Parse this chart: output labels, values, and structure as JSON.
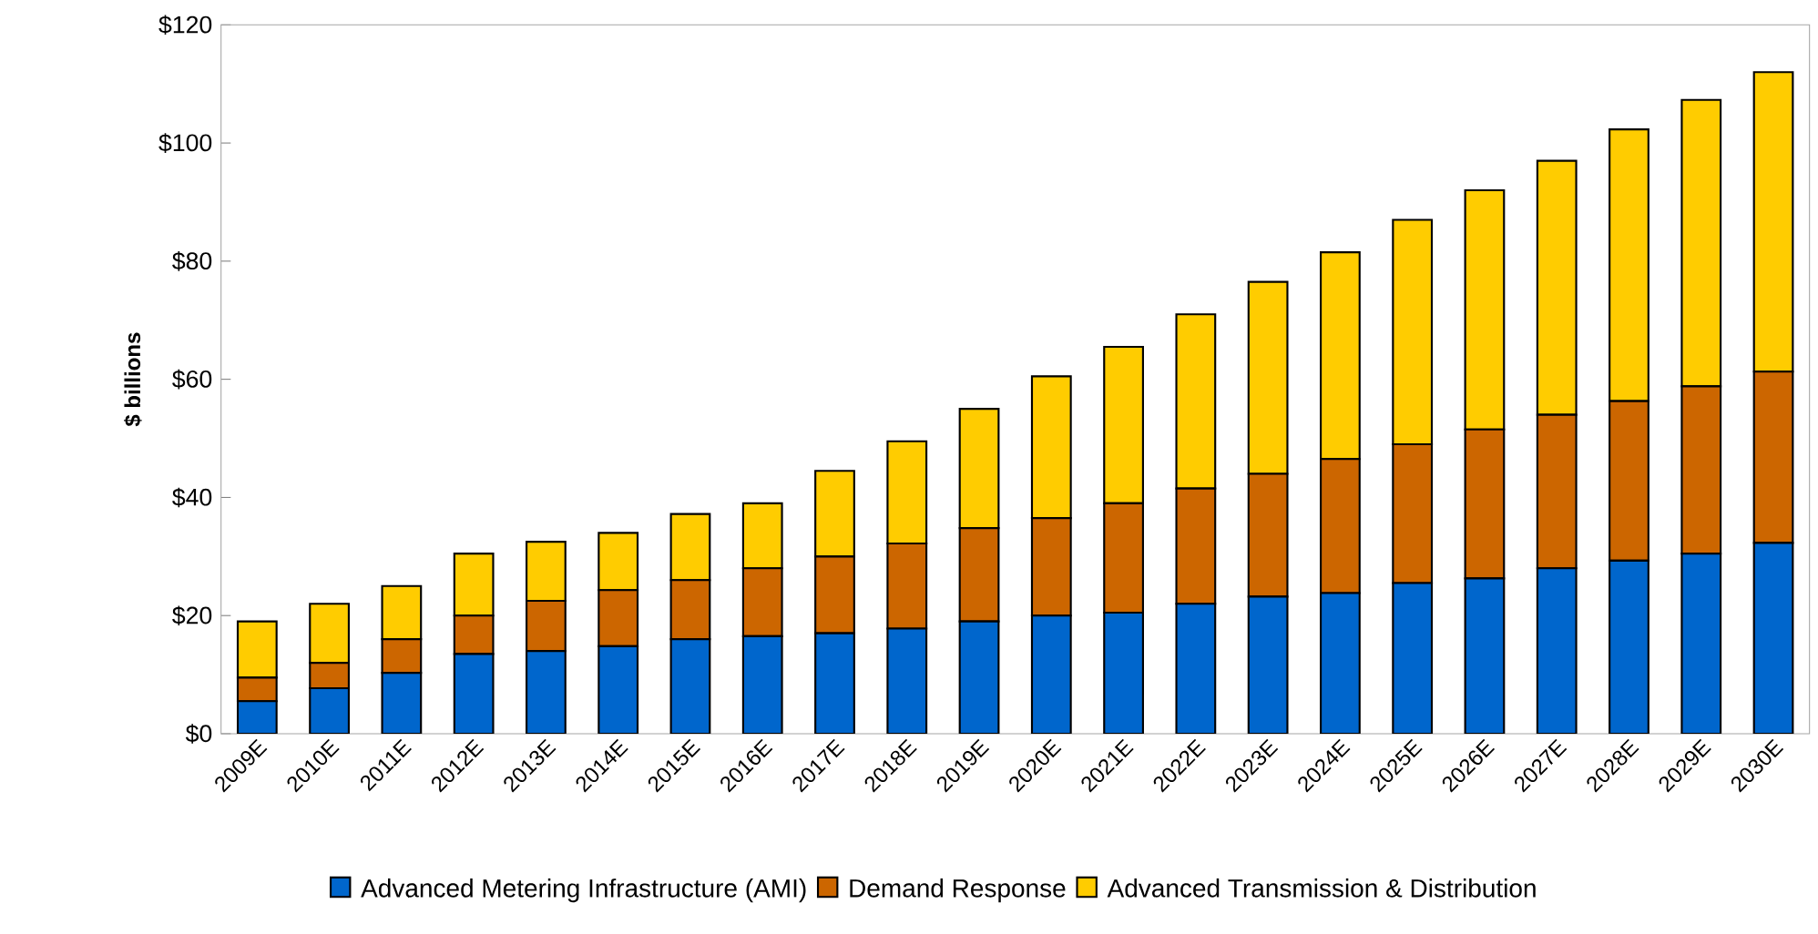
{
  "chart_data": {
    "type": "bar",
    "stacked": true,
    "ylabel": "$ billions",
    "categories": [
      "2009E",
      "2010E",
      "2011E",
      "2012E",
      "2013E",
      "2014E",
      "2015E",
      "2016E",
      "2017E",
      "2018E",
      "2019E",
      "2020E",
      "2021E",
      "2022E",
      "2023E",
      "2024E",
      "2025E",
      "2026E",
      "2027E",
      "2028E",
      "2029E",
      "2030E"
    ],
    "series": [
      {
        "name": "Advanced Metering Infrastructure (AMI)",
        "color": "#0066cc",
        "values": [
          5.5,
          7.7,
          10.3,
          13.5,
          14,
          14.8,
          16,
          16.5,
          17,
          17.8,
          19,
          20,
          20.5,
          22,
          23.2,
          23.8,
          25.5,
          26.3,
          28,
          29.3,
          30.5,
          32.3
        ]
      },
      {
        "name": "Demand Response",
        "color": "#cc6600",
        "values": [
          4,
          4.3,
          5.7,
          6.5,
          8.5,
          9.5,
          10,
          11.5,
          13,
          14.4,
          15.8,
          16.5,
          18.5,
          19.5,
          20.8,
          22.7,
          23.5,
          25.2,
          26,
          27,
          28.3,
          29
        ]
      },
      {
        "name": "Advanced Transmission & Distribution",
        "color": "#ffcc00",
        "values": [
          9.5,
          10,
          9,
          10.5,
          10,
          9.7,
          11.2,
          11,
          14.5,
          17.3,
          20.2,
          24,
          26.5,
          29.5,
          32.5,
          35,
          38,
          40.5,
          43,
          46,
          48.5,
          50.7
        ]
      }
    ],
    "ylim": [
      0,
      120
    ],
    "yticks": [
      {
        "value": 0,
        "label": "$0"
      },
      {
        "value": 20,
        "label": "$20"
      },
      {
        "value": 40,
        "label": "$40"
      },
      {
        "value": 60,
        "label": "$60"
      },
      {
        "value": 80,
        "label": "$80"
      },
      {
        "value": 100,
        "label": "$100"
      },
      {
        "value": 120,
        "label": "$120"
      }
    ],
    "grid": false,
    "legend": "bottom"
  }
}
